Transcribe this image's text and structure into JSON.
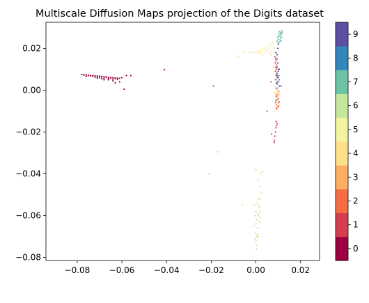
{
  "chart_data": {
    "type": "scatter",
    "title": "Multiscale Diffusion Maps projection of the Digits dataset",
    "xlabel": "",
    "ylabel": "",
    "xlim": [
      -0.094,
      0.0285
    ],
    "ylim": [
      -0.0815,
      0.0325
    ],
    "xticks": [
      -0.08,
      -0.06,
      -0.04,
      -0.02,
      0.0,
      0.02
    ],
    "xtick_labels": [
      "−0.08",
      "−0.06",
      "−0.04",
      "−0.02",
      "0.00",
      "0.02"
    ],
    "yticks": [
      0.02,
      0.0,
      -0.02,
      -0.04,
      -0.06,
      -0.08
    ],
    "ytick_labels": [
      "0.02",
      "0.00",
      "−0.02",
      "−0.04",
      "−0.06",
      "−0.08"
    ],
    "grid": false,
    "colorbar": {
      "cmap": "Spectral",
      "ticks": [
        "0",
        "1",
        "2",
        "3",
        "4",
        "5",
        "6",
        "7",
        "8",
        "9"
      ],
      "colors": [
        "#9e0142",
        "#d53e4f",
        "#f46d43",
        "#fdae61",
        "#fee08b",
        "#f5f5a0",
        "#c5e69d",
        "#6cc3a5",
        "#3288bd",
        "#5e4fa2"
      ]
    },
    "series": [
      {
        "label": "0",
        "color": "#9e0142",
        "points": [
          [
            -0.078,
            0.0075
          ],
          [
            -0.077,
            0.0074
          ],
          [
            -0.076,
            0.0073
          ],
          [
            -0.075,
            0.0072
          ],
          [
            -0.074,
            0.0071
          ],
          [
            -0.073,
            0.007
          ],
          [
            -0.072,
            0.0069
          ],
          [
            -0.071,
            0.0068
          ],
          [
            -0.07,
            0.0067
          ],
          [
            -0.069,
            0.0066
          ],
          [
            -0.068,
            0.0065
          ],
          [
            -0.067,
            0.0064
          ],
          [
            -0.066,
            0.0062
          ],
          [
            -0.065,
            0.0061
          ],
          [
            -0.064,
            0.006
          ],
          [
            -0.063,
            0.0059
          ],
          [
            -0.062,
            0.0058
          ],
          [
            -0.061,
            0.0057
          ],
          [
            -0.077,
            0.0072
          ],
          [
            -0.075,
            0.007
          ],
          [
            -0.073,
            0.0067
          ],
          [
            -0.071,
            0.0065
          ],
          [
            -0.069,
            0.0063
          ],
          [
            -0.067,
            0.0061
          ],
          [
            -0.065,
            0.0058
          ],
          [
            -0.063,
            0.0056
          ],
          [
            -0.07,
            0.006
          ],
          [
            -0.068,
            0.0057
          ],
          [
            -0.066,
            0.0055
          ],
          [
            -0.064,
            0.0053
          ],
          [
            -0.072,
            0.0062
          ],
          [
            -0.069,
            0.0055
          ],
          [
            -0.066,
            0.005
          ],
          [
            -0.064,
            0.0045
          ],
          [
            -0.061,
            0.004
          ],
          [
            -0.063,
            0.0035
          ],
          [
            -0.06,
            0.006
          ],
          [
            -0.058,
            0.007
          ],
          [
            -0.056,
            0.007
          ],
          [
            -0.059,
            0.0005
          ],
          [
            -0.041,
            0.0098
          ],
          [
            -0.074,
            0.0068
          ],
          [
            -0.071,
            0.0058
          ],
          [
            -0.068,
            0.005
          ],
          [
            -0.076,
            0.0066
          ],
          [
            -0.062,
            0.0052
          ]
        ]
      },
      {
        "label": "1",
        "color": "#d53e4f",
        "points": [
          [
            0.0085,
            0.016
          ],
          [
            0.0088,
            0.015
          ],
          [
            0.009,
            0.014
          ],
          [
            0.0087,
            0.013
          ],
          [
            0.0092,
            0.012
          ],
          [
            0.0089,
            0.011
          ],
          [
            0.0091,
            0.01
          ],
          [
            0.0088,
            0.009
          ],
          [
            0.0093,
            0.008
          ],
          [
            0.009,
            0.007
          ],
          [
            0.0095,
            0.006
          ],
          [
            0.009,
            -0.015
          ],
          [
            0.0095,
            -0.016
          ],
          [
            0.0092,
            -0.017
          ],
          [
            0.009,
            -0.018
          ],
          [
            0.0088,
            -0.02
          ],
          [
            0.0085,
            -0.022
          ],
          [
            0.0083,
            -0.024
          ],
          [
            0.0082,
            -0.025
          ],
          [
            0.0068,
            0.004
          ],
          [
            -0.019,
            0.002
          ]
        ]
      },
      {
        "label": "2",
        "color": "#f46d43",
        "points": [
          [
            0.009,
            -0.003
          ],
          [
            0.0095,
            -0.0045
          ],
          [
            0.01,
            -0.006
          ],
          [
            0.0092,
            -0.007
          ],
          [
            0.0098,
            -0.008
          ],
          [
            0.0094,
            -0.009
          ],
          [
            0.01,
            -0.004
          ],
          [
            0.0105,
            -0.0055
          ],
          [
            0.0088,
            -0.006
          ],
          [
            0.0096,
            -0.0025
          ],
          [
            0.0102,
            -0.0075
          ],
          [
            0.0091,
            -0.0085
          ]
        ]
      },
      {
        "label": "3",
        "color": "#fdae61",
        "points": [
          [
            0.0095,
            0.0
          ],
          [
            0.01,
            -0.001
          ],
          [
            0.009,
            -0.002
          ],
          [
            0.0105,
            -0.0005
          ],
          [
            0.0098,
            0.001
          ],
          [
            0.0092,
            -0.0015
          ],
          [
            0.0103,
            -0.002
          ],
          [
            0.0096,
            -0.003
          ]
        ]
      },
      {
        "label": "4",
        "color": "#fee08b",
        "points": [
          [
            -0.005,
            0.018
          ],
          [
            -0.003,
            0.0182
          ],
          [
            -0.001,
            0.0185
          ],
          [
            0.0,
            0.0182
          ],
          [
            0.001,
            0.0186
          ],
          [
            0.002,
            0.019
          ],
          [
            0.003,
            0.0195
          ],
          [
            0.004,
            0.02
          ],
          [
            0.005,
            0.021
          ],
          [
            0.006,
            0.022
          ],
          [
            0.007,
            0.0215
          ],
          [
            0.006,
            0.02
          ],
          [
            0.004,
            0.0185
          ],
          [
            0.002,
            0.018
          ],
          [
            0.001,
            0.0175
          ],
          [
            0.003,
            0.017
          ],
          [
            -0.002,
            0.0178
          ],
          [
            0.005,
            0.019
          ],
          [
            0.0065,
            0.018
          ],
          [
            0.008,
            0.02
          ],
          [
            0.0075,
            0.023
          ],
          [
            0.0085,
            0.018
          ],
          [
            0.009,
            0.016
          ],
          [
            -0.008,
            0.016
          ],
          [
            0.007,
            0.017
          ],
          [
            0.0082,
            -0.001
          ],
          [
            0.0088,
            -0.005
          ],
          [
            0.008,
            0.002
          ],
          [
            0.0085,
            0.005
          ],
          [
            0.0083,
            0.009
          ],
          [
            0.0078,
            0.011
          ]
        ]
      },
      {
        "label": "5",
        "color": "#f5f5a0",
        "points": [
          [
            0.005,
            0.0195
          ],
          [
            0.006,
            0.0205
          ],
          [
            0.007,
            0.019
          ],
          [
            0.008,
            0.021
          ]
        ]
      },
      {
        "label": "6",
        "color": "#c5e69d",
        "points": [
          [
            0.001,
            -0.052
          ],
          [
            0.0005,
            -0.054
          ],
          [
            0.0015,
            -0.056
          ],
          [
            0.0,
            -0.058
          ],
          [
            0.001,
            -0.06
          ],
          [
            0.0005,
            -0.062
          ],
          [
            0.0,
            -0.064
          ],
          [
            0.0008,
            -0.066
          ],
          [
            -0.0002,
            -0.068
          ],
          [
            0.0005,
            -0.07
          ],
          [
            0.0,
            -0.072
          ],
          [
            0.0003,
            -0.074
          ],
          [
            0.0002,
            -0.076
          ],
          [
            0.0012,
            -0.055
          ],
          [
            0.0018,
            -0.058
          ],
          [
            0.002,
            -0.061
          ],
          [
            0.0015,
            -0.063
          ],
          [
            -0.0005,
            -0.06
          ],
          [
            -0.001,
            -0.065
          ],
          [
            0.002,
            -0.052
          ],
          [
            0.0025,
            -0.049
          ],
          [
            0.002,
            -0.046
          ],
          [
            0.001,
            -0.043
          ],
          [
            0.002,
            -0.04
          ],
          [
            0.003,
            -0.039
          ],
          [
            0.0,
            -0.038
          ],
          [
            -0.0008,
            -0.055
          ],
          [
            -0.006,
            -0.055
          ],
          [
            -0.021,
            -0.04
          ],
          [
            -0.017,
            -0.0295
          ],
          [
            0.001,
            -0.07
          ],
          [
            0.0006,
            -0.069
          ],
          [
            -0.0004,
            -0.071
          ],
          [
            0.0008,
            -0.059
          ]
        ]
      },
      {
        "label": "7",
        "color": "#6cc3a5",
        "points": [
          [
            0.0105,
            0.028
          ],
          [
            0.011,
            0.0275
          ],
          [
            0.0115,
            0.027
          ],
          [
            0.011,
            0.0265
          ],
          [
            0.0105,
            0.026
          ],
          [
            0.0115,
            0.0255
          ],
          [
            0.011,
            0.025
          ],
          [
            0.01,
            0.0245
          ],
          [
            0.0108,
            0.024
          ],
          [
            0.0112,
            0.0235
          ],
          [
            0.0105,
            0.023
          ],
          [
            0.01,
            0.0225
          ],
          [
            0.0115,
            0.0285
          ],
          [
            0.0118,
            0.0278
          ],
          [
            0.0102,
            0.027
          ],
          [
            0.0098,
            0.0255
          ],
          [
            0.0095,
            0.0235
          ]
        ]
      },
      {
        "label": "8",
        "color": "#3288bd",
        "points": [
          [
            0.01,
            0.01
          ],
          [
            0.0095,
            0.008
          ],
          [
            0.01,
            0.006
          ],
          [
            0.0105,
            0.005
          ],
          [
            0.0098,
            0.004
          ],
          [
            0.0092,
            0.0035
          ],
          [
            0.0103,
            0.007
          ],
          [
            0.009,
            -0.005
          ],
          [
            0.005,
            -0.01
          ],
          [
            0.007,
            -0.021
          ]
        ]
      },
      {
        "label": "9",
        "color": "#5e4fa2",
        "points": [
          [
            0.0095,
            0.015
          ],
          [
            0.0098,
            0.013
          ],
          [
            0.0095,
            0.011
          ],
          [
            0.01,
            0.009
          ],
          [
            0.0095,
            0.007
          ],
          [
            0.01,
            0.006
          ],
          [
            0.009,
            0.005
          ],
          [
            0.01,
            0.004
          ],
          [
            0.0095,
            0.003
          ],
          [
            0.0105,
            0.002
          ],
          [
            0.009,
            0.001
          ],
          [
            0.0112,
            0.002
          ],
          [
            0.0105,
            0.01
          ],
          [
            0.009,
            0.018
          ],
          [
            0.0098,
            0.02
          ],
          [
            0.01,
            0.022
          ],
          [
            0.0095,
            0.017
          ]
        ]
      }
    ]
  }
}
